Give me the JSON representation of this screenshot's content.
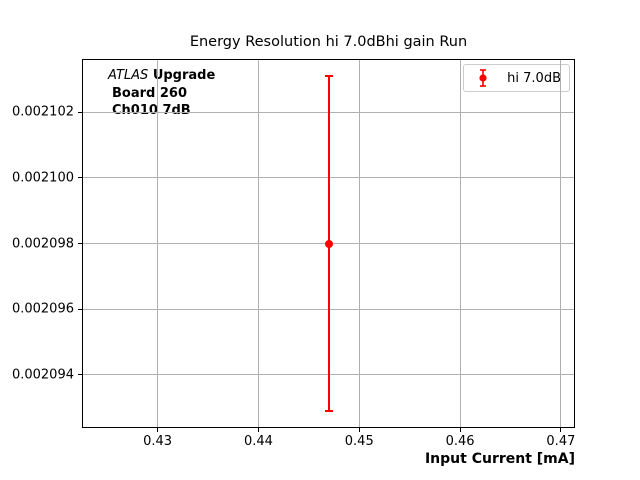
{
  "chart": {
    "title": "Energy Resolution hi 7.0dBhi gain Run",
    "xlabel": "Input Current [mA]"
  },
  "annotation": {
    "line1_italic": "ATLAS",
    "line1_bold": "Upgrade",
    "line2": "Board 260",
    "line3": "Ch010 7dB"
  },
  "legend": {
    "label": "hi 7.0dB",
    "marker_color": "#ff0000"
  },
  "chart_data": {
    "type": "scatter",
    "title": "Energy Resolution hi 7.0dBhi gain Run",
    "xlabel": "Input Current [mA]",
    "ylabel": "",
    "xlim": [
      0.4226,
      0.4713
    ],
    "ylim": [
      0.0020924,
      0.0021036
    ],
    "xticks": [
      0.43,
      0.44,
      0.45,
      0.46,
      0.47
    ],
    "xtick_labels": [
      "0.43",
      "0.44",
      "0.45",
      "0.46",
      "0.47"
    ],
    "yticks": [
      0.002094,
      0.002096,
      0.002098,
      0.0021,
      0.002102
    ],
    "ytick_labels": [
      "0.002094",
      "0.002096",
      "0.002098",
      "0.002100",
      "0.002102"
    ],
    "grid": true,
    "grid_color": "#b0b0b0",
    "frame_color": "#000000",
    "legend_position": "upper right",
    "series": [
      {
        "name": "hi 7.0dB",
        "color": "#ff0000",
        "marker": "circle",
        "points": [
          {
            "x": 0.447,
            "y": 0.002098,
            "yerr": 5.1e-06,
            "y_top": 0.0021031,
            "y_bottom": 0.0020929
          }
        ]
      }
    ]
  }
}
